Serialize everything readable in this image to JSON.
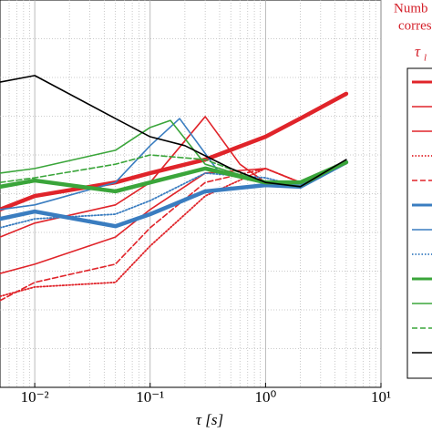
{
  "chart_data": {
    "type": "line",
    "x_label": "τ [s]",
    "x_scale": "log",
    "xlim": [
      0.005,
      10
    ],
    "xticks": [
      {
        "value": 0.01,
        "label": "10⁻²"
      },
      {
        "value": 0.1,
        "label": "10⁻¹"
      },
      {
        "value": 1,
        "label": "10⁰"
      },
      {
        "value": 10,
        "label": "10¹"
      }
    ],
    "ylim": [
      0,
      100
    ],
    "ygrid": [
      10,
      20,
      30,
      40,
      50,
      60,
      70,
      80,
      90
    ],
    "grid": true,
    "legend_title": [
      "Numb",
      "corres"
    ],
    "legend_symbol": "τ",
    "legend_symbol_sub": "l",
    "series": [
      {
        "color": "#e0242a",
        "style": "thick",
        "x": [
          0.005,
          0.01,
          0.05,
          0.1,
          0.3,
          1,
          2,
          5
        ],
        "values": [
          45.9,
          49.4,
          52.9,
          55.3,
          58.8,
          64.7,
          69.4,
          75.8
        ]
      },
      {
        "color": "#e0242a",
        "style": "solid",
        "x": [
          0.005,
          0.01,
          0.05,
          0.1,
          0.3,
          0.6,
          1,
          2,
          5
        ],
        "values": [
          38.8,
          42.4,
          47.1,
          52.9,
          69.9,
          57.6,
          52.9,
          51.8,
          58.1
        ]
      },
      {
        "color": "#e0242a",
        "style": "solid",
        "x": [
          0.005,
          0.01,
          0.05,
          0.1,
          0.3,
          1,
          2,
          5
        ],
        "values": [
          29.4,
          31.8,
          38.8,
          45.9,
          55.3,
          56.5,
          52.9,
          58.1
        ]
      },
      {
        "color": "#e0242a",
        "style": "dotted",
        "x": [
          0.005,
          0.01,
          0.05,
          0.1,
          0.3,
          1,
          2,
          5
        ],
        "values": [
          23.5,
          25.9,
          27.1,
          36.5,
          49.4,
          56.5,
          52.9,
          58.1
        ]
      },
      {
        "color": "#e0242a",
        "style": "dashed",
        "x": [
          0.005,
          0.01,
          0.05,
          0.1,
          0.3,
          1,
          2,
          5
        ],
        "values": [
          22.4,
          27.1,
          31.8,
          41.2,
          52.9,
          56.5,
          52.9,
          58.1
        ]
      },
      {
        "color": "#3a7dc0",
        "style": "thick",
        "x": [
          0.005,
          0.01,
          0.05,
          0.1,
          0.3,
          1,
          2,
          5
        ],
        "values": [
          43.5,
          45.4,
          41.6,
          44.7,
          50.6,
          52.2,
          51.8,
          58.1
        ]
      },
      {
        "color": "#3a7dc0",
        "style": "solid",
        "x": [
          0.005,
          0.01,
          0.05,
          0.1,
          0.18,
          0.4,
          1,
          2,
          5
        ],
        "values": [
          45.9,
          47.1,
          52.9,
          62.4,
          69.4,
          55.3,
          52.9,
          51.8,
          58.1
        ]
      },
      {
        "color": "#3a7dc0",
        "style": "dotted",
        "x": [
          0.005,
          0.01,
          0.05,
          0.1,
          0.3,
          1,
          2,
          5
        ],
        "values": [
          41.2,
          43.5,
          44.7,
          48.2,
          55.3,
          54.1,
          51.8,
          58.1
        ]
      },
      {
        "color": "#3aa53a",
        "style": "thick",
        "x": [
          0.005,
          0.01,
          0.05,
          0.1,
          0.3,
          1,
          2,
          5
        ],
        "values": [
          51.8,
          53.4,
          50.6,
          52.9,
          56.5,
          52.9,
          52.9,
          58.1
        ]
      },
      {
        "color": "#3aa53a",
        "style": "solid",
        "x": [
          0.005,
          0.01,
          0.05,
          0.1,
          0.15,
          0.3,
          1,
          2,
          5
        ],
        "values": [
          55.3,
          56.5,
          61.2,
          67.1,
          68.9,
          57.6,
          52.9,
          51.8,
          58.1
        ]
      },
      {
        "color": "#3aa53a",
        "style": "dashed",
        "x": [
          0.005,
          0.01,
          0.05,
          0.1,
          0.3,
          1,
          2,
          5
        ],
        "values": [
          52.9,
          54.1,
          57.6,
          60.0,
          58.8,
          52.9,
          51.8,
          58.1
        ]
      },
      {
        "color": "#000000",
        "style": "solid",
        "x": [
          0.005,
          0.01,
          0.05,
          0.1,
          0.2,
          0.5,
          1,
          2,
          5
        ],
        "values": [
          78.8,
          80.5,
          69.4,
          64.7,
          62.4,
          56.5,
          52.9,
          51.8,
          58.8
        ]
      }
    ]
  }
}
